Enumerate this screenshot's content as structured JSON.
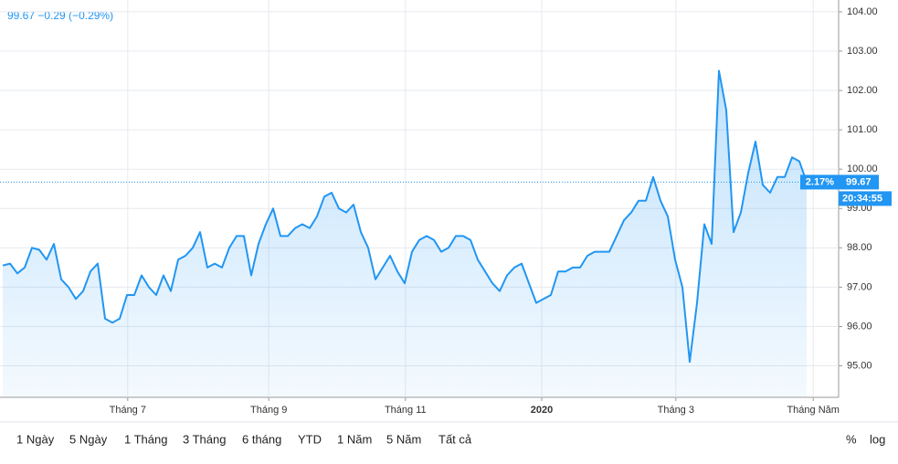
{
  "chart_data": {
    "type": "line",
    "header": "99.67 −0.29 (−0.29%)",
    "change_label": "2.17%",
    "time_label": "20:34:55",
    "color": "#2196f3",
    "values": [
      97.55,
      97.6,
      97.35,
      97.5,
      98.0,
      97.95,
      97.7,
      98.1,
      97.2,
      97.0,
      96.7,
      96.9,
      97.4,
      97.6,
      96.2,
      96.1,
      96.2,
      96.8,
      96.8,
      97.3,
      97.0,
      96.8,
      97.3,
      96.9,
      97.7,
      97.8,
      98.0,
      98.4,
      97.5,
      97.6,
      97.5,
      98.0,
      98.3,
      98.3,
      97.3,
      98.1,
      98.6,
      99.0,
      98.3,
      98.3,
      98.5,
      98.6,
      98.5,
      98.8,
      99.3,
      99.4,
      99.0,
      98.9,
      99.1,
      98.4,
      98.0,
      97.2,
      97.5,
      97.8,
      97.4,
      97.1,
      97.9,
      98.2,
      98.3,
      98.2,
      97.9,
      98.0,
      98.3,
      98.3,
      98.2,
      97.7,
      97.4,
      97.1,
      96.9,
      97.3,
      97.5,
      97.6,
      97.1,
      96.6,
      96.7,
      96.8,
      97.4,
      97.4,
      97.5,
      97.5,
      97.8,
      97.9,
      97.9,
      97.9,
      98.3,
      98.7,
      98.9,
      99.2,
      99.2,
      99.8,
      99.2,
      98.8,
      97.7,
      97.0,
      95.1,
      96.6,
      98.6,
      98.1,
      102.5,
      101.5,
      98.4,
      98.9,
      99.9,
      100.7,
      99.6,
      99.4,
      99.8,
      99.8,
      100.3,
      100.2,
      99.67
    ],
    "xlim": [
      0,
      114.5
    ],
    "xticks": [
      {
        "value": 17.1,
        "label": "Tháng 7"
      },
      {
        "value": 36.4,
        "label": "Tháng 9"
      },
      {
        "value": 55.1,
        "label": "Tháng 11"
      },
      {
        "value": 73.75,
        "label": "2020"
      },
      {
        "value": 92.1,
        "label": "Tháng 3"
      },
      {
        "value": 110.9,
        "label": "Tháng Năm"
      }
    ],
    "ylim": [
      94.2,
      104.3
    ],
    "yticks": [
      {
        "value": 95,
        "label": "95.00"
      },
      {
        "value": 96,
        "label": "96.00"
      },
      {
        "value": 97,
        "label": "97.00"
      },
      {
        "value": 98,
        "label": "98.00"
      },
      {
        "value": 99,
        "label": "99.00"
      },
      {
        "value": 100,
        "label": "100.00"
      },
      {
        "value": 101,
        "label": "101.00"
      },
      {
        "value": 102,
        "label": "102.00"
      },
      {
        "value": 103,
        "label": "103.00"
      },
      {
        "value": 104,
        "label": "104.00"
      }
    ],
    "grid": true
  },
  "toolbar": {
    "ranges": [
      "1 Ngày",
      "5 Ngày",
      "1 Tháng",
      "3 Tháng",
      "6 tháng",
      "YTD",
      "1 Năm",
      "5 Năm",
      "Tất cả"
    ],
    "scale": [
      "%",
      "log"
    ]
  }
}
